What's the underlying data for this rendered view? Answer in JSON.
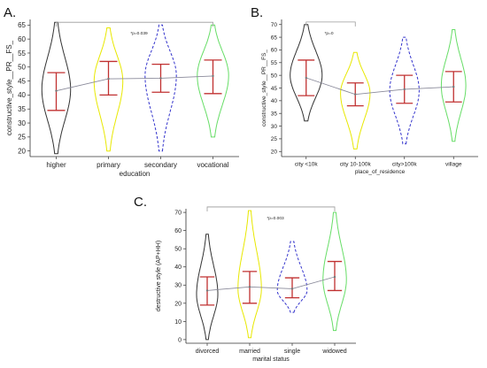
{
  "chart_data": [
    {
      "type": "violin",
      "panel_label": "A.",
      "xlabel": "education",
      "ylabel": "constructive_style__PR__FS_",
      "ylim": [
        18,
        67
      ],
      "yticks": [
        20,
        25,
        30,
        35,
        40,
        45,
        50,
        55,
        60,
        65
      ],
      "categories": [
        "higher",
        "primary",
        "secondary",
        "vocational"
      ],
      "colors": [
        "#333333",
        "#e8e800",
        "#3333cc",
        "#66dd66"
      ],
      "dashed": [
        false,
        false,
        true,
        false
      ],
      "extent": [
        [
          19,
          66
        ],
        [
          20,
          64
        ],
        [
          20,
          65
        ],
        [
          25,
          65
        ]
      ],
      "width": [
        0.55,
        0.55,
        0.6,
        0.6
      ],
      "mode": [
        42,
        45,
        47,
        47
      ],
      "whisker_low": [
        34.5,
        40,
        41,
        40.5
      ],
      "whisker_high": [
        48,
        52,
        51,
        52.5
      ],
      "mean": [
        41.5,
        45.8,
        46,
        46.8
      ],
      "annotation": {
        "text": "*p=0.039",
        "x1": "higher",
        "x2": "vocational",
        "y": 66
      }
    },
    {
      "type": "violin",
      "panel_label": "B.",
      "xlabel": "place_of_residence",
      "ylabel": "constructive_style__PR__FS_",
      "ylim": [
        18,
        72
      ],
      "yticks": [
        20,
        25,
        30,
        35,
        40,
        45,
        50,
        55,
        60,
        65,
        70
      ],
      "categories": [
        "city <10k",
        "city 10-100k",
        "city>100k",
        "village"
      ],
      "colors": [
        "#333333",
        "#e8e800",
        "#3333cc",
        "#66dd66"
      ],
      "dashed": [
        false,
        false,
        true,
        false
      ],
      "extent": [
        [
          32,
          70
        ],
        [
          21,
          59
        ],
        [
          23,
          65
        ],
        [
          24,
          68
        ]
      ],
      "width": [
        0.65,
        0.6,
        0.6,
        0.5
      ],
      "mode": [
        50,
        43,
        44,
        46
      ],
      "whisker_low": [
        42,
        38,
        39,
        39.5
      ],
      "whisker_high": [
        56,
        47,
        50,
        51.5
      ],
      "mean": [
        49,
        42.5,
        44.5,
        45.5
      ],
      "annotation": {
        "text": "*p=0",
        "x1": "city <10k",
        "x2": "city 10-100k",
        "y": 71
      }
    },
    {
      "type": "violin",
      "panel_label": "C.",
      "xlabel": "marital status",
      "ylabel": "destructive style (AP+HH)",
      "ylim": [
        -2,
        72
      ],
      "yticks": [
        0,
        10,
        20,
        30,
        40,
        50,
        60,
        70
      ],
      "categories": [
        "divorced",
        "married",
        "single",
        "widowed"
      ],
      "colors": [
        "#333333",
        "#e8e800",
        "#3333cc",
        "#66dd66"
      ],
      "dashed": [
        false,
        false,
        true,
        false
      ],
      "extent": [
        [
          0,
          58
        ],
        [
          1,
          71
        ],
        [
          15,
          54
        ],
        [
          5,
          70
        ]
      ],
      "width": [
        0.5,
        0.55,
        0.7,
        0.55
      ],
      "mode": [
        25,
        28,
        27,
        33
      ],
      "whisker_low": [
        19,
        20,
        23,
        27
      ],
      "whisker_high": [
        34.5,
        37.5,
        34,
        43
      ],
      "mean": [
        27,
        29,
        28,
        34.5
      ],
      "annotation": {
        "text": "*p=0.003",
        "x1": "divorced",
        "x2": "widowed",
        "y": 73
      }
    }
  ]
}
